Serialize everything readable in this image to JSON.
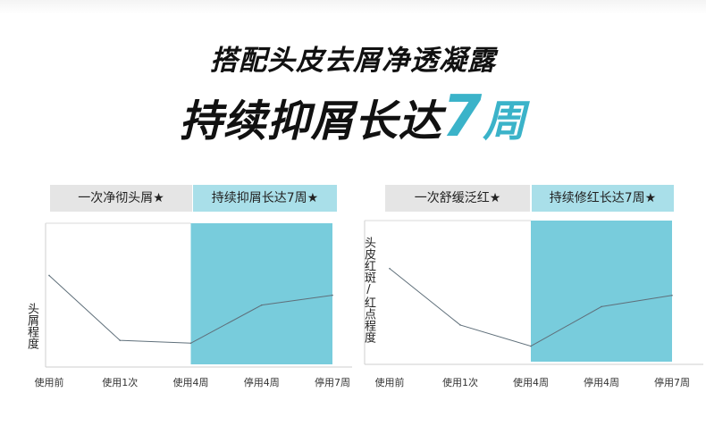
{
  "headline": {
    "line1": "搭配头皮去屑净透凝露",
    "line2_prefix": "持续抑屑长达",
    "line2_number": "7",
    "line2_suffix": "周"
  },
  "accent_color": "#3bb3c9",
  "highlight_color": "#78ccdc",
  "chart_data": [
    {
      "type": "line",
      "header_left": "一次净彻头屑★",
      "header_right": "持续抑屑长达7周★",
      "ylabel": "头屑程度",
      "categories": [
        "使用前",
        "使用1次",
        "使用4周",
        "停用4周",
        "停用7周"
      ],
      "values": [
        0.63,
        0.17,
        0.15,
        0.42,
        0.49
      ],
      "ylim": [
        0,
        1
      ],
      "highlight_range": [
        "使用4周",
        "停用7周"
      ]
    },
    {
      "type": "line",
      "header_left": "一次舒缓泛红★",
      "header_right": "持续修红长达7周★",
      "ylabel": "头皮红斑/红点程度",
      "categories": [
        "使用前",
        "使用1次",
        "使用4周",
        "停用4周",
        "停用7周"
      ],
      "values": [
        0.66,
        0.26,
        0.11,
        0.39,
        0.47
      ],
      "ylim": [
        0,
        1
      ],
      "highlight_range": [
        "使用4周",
        "停用7周"
      ]
    }
  ]
}
